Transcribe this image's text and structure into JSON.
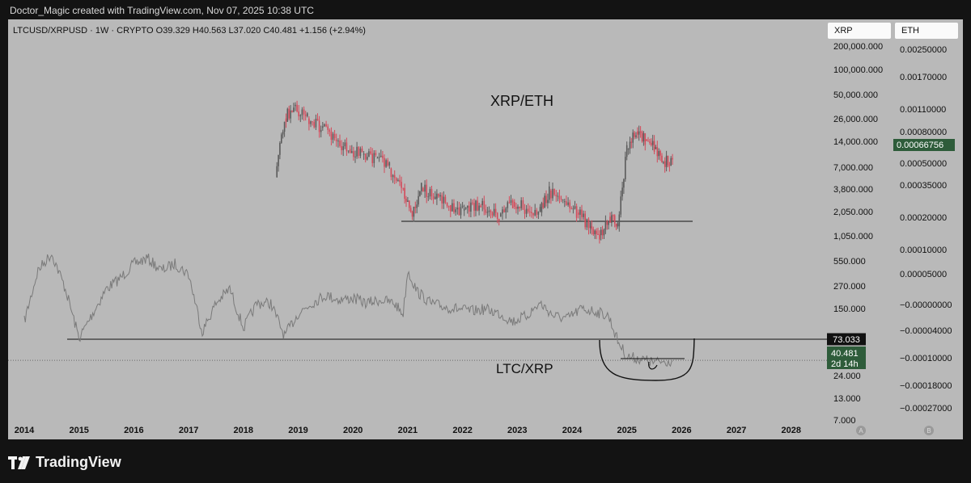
{
  "header": {
    "credit": "Doctor_Magic created with TradingView.com, Nov 07, 2025 10:38 UTC"
  },
  "symbol": {
    "line": "LTCUSD/XRPUSD · 1W · CRYPTO  O39.329  H40.563  L37.020  C40.481  +1.156 (+2.94%)"
  },
  "scale_tabs": {
    "left": "XRP",
    "right": "ETH"
  },
  "axis_badges": {
    "a": "A",
    "b": "B"
  },
  "footer": {
    "brand": "TradingView"
  },
  "colors": {
    "background": "#b9b9b9",
    "frame": "#131313",
    "candle_up": "#5a5a5a",
    "candle_down": "#d44a5a",
    "ltc_line": "#7a7a7a",
    "price_badge_bg": "#2e5c3a",
    "level_badge_bg": "#111111"
  },
  "chart_data": [
    {
      "type": "candlestick",
      "series_name": "XRP/ETH",
      "annotation": "XRP/ETH",
      "axis": "right",
      "scale": "log",
      "y_ticks": [
        "0.00250000",
        "0.00170000",
        "0.00110000",
        "0.00080000",
        "0.00050000",
        "0.00035000",
        "0.00020000",
        "0.00010000",
        "0.00005000",
        "−0.00000000",
        "−0.00004000",
        "−0.00010000",
        "−0.00018000",
        "−0.00027000"
      ],
      "last_price": "0.00066756",
      "support_level": 0.0002,
      "points": [
        [
          "2018-08",
          0.0005
        ],
        [
          "2018-10",
          0.0017
        ],
        [
          "2018-12",
          0.0022
        ],
        [
          "2019-03",
          0.0017
        ],
        [
          "2019-06",
          0.0014
        ],
        [
          "2019-09",
          0.0011
        ],
        [
          "2019-12",
          0.0009
        ],
        [
          "2020-03",
          0.0008
        ],
        [
          "2020-06",
          0.00075
        ],
        [
          "2020-09",
          0.0006
        ],
        [
          "2020-12",
          0.0004
        ],
        [
          "2021-02",
          0.00022
        ],
        [
          "2021-04",
          0.0004
        ],
        [
          "2021-07",
          0.00032
        ],
        [
          "2021-10",
          0.00028
        ],
        [
          "2022-01",
          0.00025
        ],
        [
          "2022-05",
          0.00028
        ],
        [
          "2022-09",
          0.00022
        ],
        [
          "2022-12",
          0.0003
        ],
        [
          "2023-03",
          0.00026
        ],
        [
          "2023-06",
          0.00024
        ],
        [
          "2023-08",
          0.00038
        ],
        [
          "2023-11",
          0.0003
        ],
        [
          "2024-02",
          0.00024
        ],
        [
          "2024-05",
          0.00018
        ],
        [
          "2024-07",
          0.00015
        ],
        [
          "2024-09",
          0.00022
        ],
        [
          "2024-11",
          0.00018
        ],
        [
          "2025-01",
          0.0009
        ],
        [
          "2025-03",
          0.0013
        ],
        [
          "2025-05",
          0.0011
        ],
        [
          "2025-07",
          0.0009
        ],
        [
          "2025-09",
          0.0007
        ],
        [
          "2025-11",
          0.00067
        ]
      ]
    },
    {
      "type": "line",
      "series_name": "LTC/XRP",
      "annotation": "LTC/XRP",
      "axis": "left",
      "scale": "log",
      "y_ticks": [
        "200,000.000",
        "100,000.000",
        "50,000.000",
        "26,000.000",
        "14,000.000",
        "7,000.000",
        "3,800.000",
        "2,050.000",
        "1,050.000",
        "550.000",
        "270.000",
        "150.000",
        "73.033",
        "40.481",
        "24.000",
        "13.000",
        "7.000"
      ],
      "support_level": "73.033",
      "last_price": "40.481",
      "countdown": "2d 14h",
      "points": [
        [
          "2014-01",
          120
        ],
        [
          "2014-04",
          500
        ],
        [
          "2014-07",
          800
        ],
        [
          "2014-10",
          300
        ],
        [
          "2015-01",
          75
        ],
        [
          "2015-04",
          150
        ],
        [
          "2015-07",
          300
        ],
        [
          "2015-10",
          400
        ],
        [
          "2016-01",
          600
        ],
        [
          "2016-04",
          700
        ],
        [
          "2016-07",
          500
        ],
        [
          "2016-10",
          600
        ],
        [
          "2017-01",
          450
        ],
        [
          "2017-04",
          90
        ],
        [
          "2017-07",
          200
        ],
        [
          "2017-10",
          300
        ],
        [
          "2018-01",
          100
        ],
        [
          "2018-04",
          200
        ],
        [
          "2018-07",
          200
        ],
        [
          "2018-10",
          80
        ],
        [
          "2019-01",
          150
        ],
        [
          "2019-04",
          200
        ],
        [
          "2019-07",
          250
        ],
        [
          "2019-10",
          220
        ],
        [
          "2020-01",
          230
        ],
        [
          "2020-04",
          200
        ],
        [
          "2020-07",
          220
        ],
        [
          "2020-10",
          200
        ],
        [
          "2020-12",
          150
        ],
        [
          "2021-01",
          500
        ],
        [
          "2021-03",
          280
        ],
        [
          "2021-06",
          200
        ],
        [
          "2021-09",
          180
        ],
        [
          "2021-12",
          170
        ],
        [
          "2022-03",
          160
        ],
        [
          "2022-06",
          170
        ],
        [
          "2022-09",
          150
        ],
        [
          "2022-12",
          120
        ],
        [
          "2023-03",
          140
        ],
        [
          "2023-06",
          200
        ],
        [
          "2023-09",
          140
        ],
        [
          "2023-12",
          130
        ],
        [
          "2024-03",
          170
        ],
        [
          "2024-06",
          160
        ],
        [
          "2024-09",
          140
        ],
        [
          "2024-11",
          70
        ],
        [
          "2025-01",
          45
        ],
        [
          "2025-04",
          42
        ],
        [
          "2025-07",
          38
        ],
        [
          "2025-11",
          40.481
        ]
      ]
    },
    {
      "type": "time-axis",
      "x_ticks": [
        "2014",
        "2015",
        "2016",
        "2017",
        "2018",
        "2019",
        "2020",
        "2021",
        "2022",
        "2023",
        "2024",
        "2025",
        "2026",
        "2027",
        "2028"
      ]
    }
  ]
}
